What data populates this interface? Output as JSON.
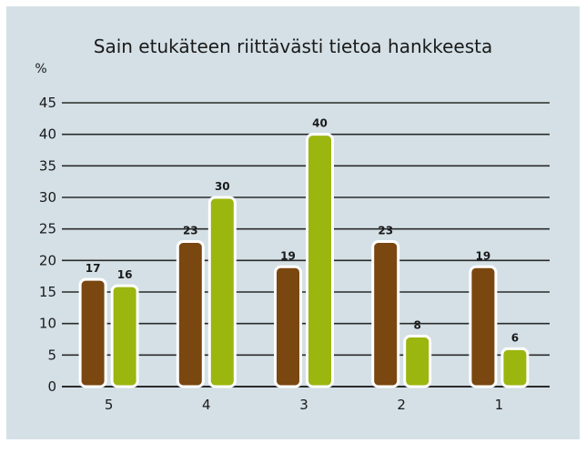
{
  "chart_data": {
    "type": "bar",
    "title": "Sain etukäteen riittävästi tietoa hankkeesta",
    "ylabel": "%",
    "xlabel": "",
    "categories": [
      "5",
      "4",
      "3",
      "2",
      "1"
    ],
    "ylim": [
      0,
      45
    ],
    "yticks": [
      0,
      5,
      10,
      15,
      20,
      25,
      30,
      35,
      40,
      45
    ],
    "grid": true,
    "legend": "none",
    "series": [
      {
        "values": [
          17,
          23,
          19,
          23,
          19
        ],
        "color": "#7a4711"
      },
      {
        "values": [
          16,
          30,
          40,
          8,
          6
        ],
        "color": "#9bb60f"
      }
    ]
  }
}
